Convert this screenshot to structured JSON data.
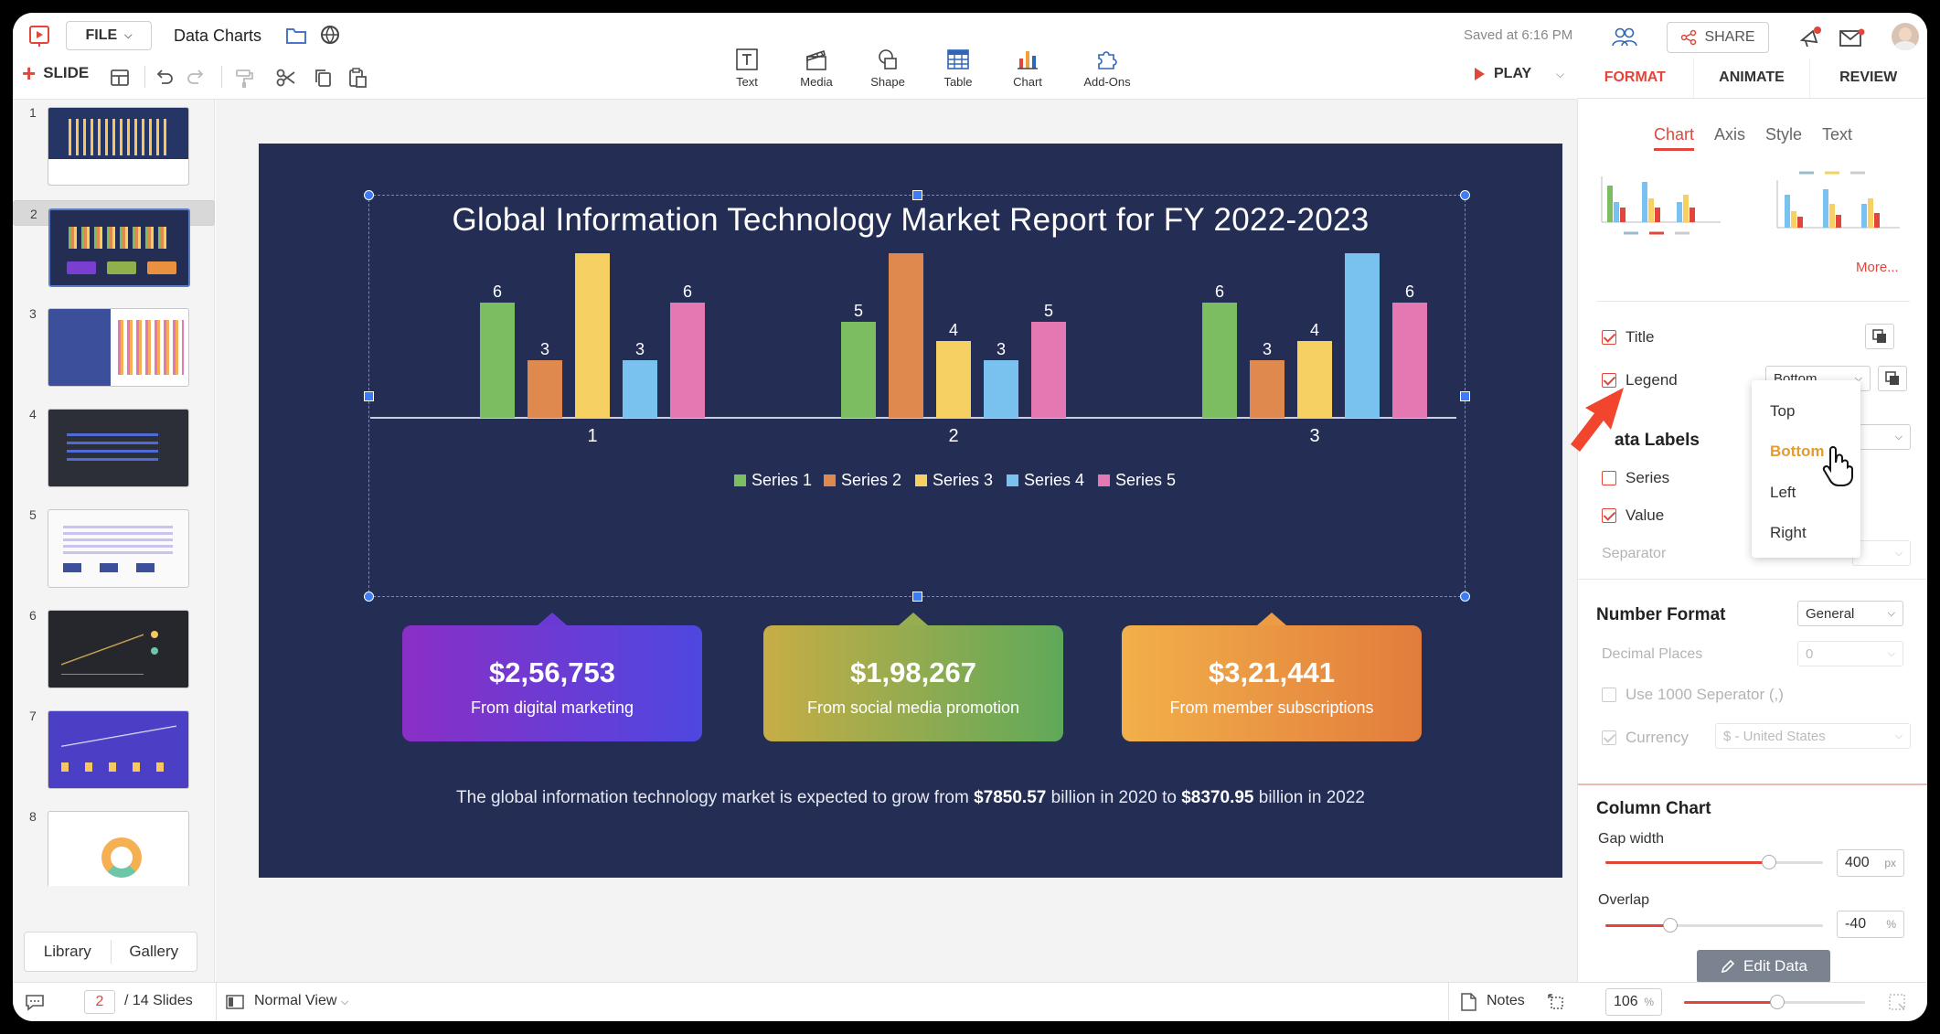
{
  "header": {
    "file_label": "FILE",
    "doc_title": "Data Charts",
    "saved_status": "Saved at 6:16 PM",
    "slide_label": "SLIDE",
    "play_label": "PLAY",
    "share_label": "SHARE",
    "insert_tools": [
      {
        "label": "Text",
        "icon": "text-box-icon"
      },
      {
        "label": "Media",
        "icon": "clapperboard-icon"
      },
      {
        "label": "Shape",
        "icon": "shapes-icon"
      },
      {
        "label": "Table",
        "icon": "table-grid-icon"
      },
      {
        "label": "Chart",
        "icon": "bar-chart-icon"
      },
      {
        "label": "Add-Ons",
        "icon": "puzzle-icon"
      }
    ]
  },
  "right_tabs": [
    "FORMAT",
    "ANIMATE",
    "REVIEW"
  ],
  "sub_tabs": [
    "Chart",
    "Axis",
    "Style",
    "Text"
  ],
  "format_panel": {
    "more_label": "More...",
    "title_label": "Title",
    "legend_label": "Legend",
    "legend_value": "Bottom",
    "legend_options": [
      "Top",
      "Bottom",
      "Left",
      "Right"
    ],
    "data_labels_title": "ata Labels",
    "series_label": "Series",
    "value_label": "Value",
    "separator_label": "Separator",
    "number_format_title": "Number Format",
    "number_format_value": "General",
    "decimal_places_label": "Decimal Places",
    "decimal_places_value": "0",
    "use_separator_label": "Use 1000 Seperator (,)",
    "currency_label": "Currency",
    "currency_value": "$ - United States",
    "column_chart_title": "Column Chart",
    "gap_width_label": "Gap width",
    "gap_width_value": "400",
    "gap_width_unit": "px",
    "gap_width_level": 0.75,
    "overlap_label": "Overlap",
    "overlap_value": "-40",
    "overlap_unit": "%",
    "overlap_level": 0.3,
    "edit_data_label": "Edit Data"
  },
  "left_panel": {
    "slide_numbers": [
      "1",
      "2",
      "3",
      "4",
      "5",
      "6",
      "7",
      "8"
    ],
    "selected_slide": "2",
    "library_label": "Library",
    "gallery_label": "Gallery"
  },
  "slide": {
    "kpis": [
      {
        "value": "$2,56,753",
        "desc": "From digital marketing"
      },
      {
        "value": "$1,98,267",
        "desc": "From social media promotion"
      },
      {
        "value": "$3,21,441",
        "desc": "From member subscriptions"
      }
    ],
    "footer_pre": "The global information technology market is expected to grow from ",
    "footer_b1": "$7850.57",
    "footer_mid": " billion in 2020 to ",
    "footer_b2": "$8370.95",
    "footer_post": " billion in 2022"
  },
  "chart_data": {
    "type": "bar",
    "title": "Global Information Technology Market Report for FY 2022-2023",
    "categories": [
      "1",
      "2",
      "3"
    ],
    "series": [
      {
        "name": "Series 1",
        "color": "#7dbd62",
        "values": [
          6,
          5,
          6
        ]
      },
      {
        "name": "Series 2",
        "color": "#e0894f",
        "values": [
          3,
          9,
          3
        ]
      },
      {
        "name": "Series 3",
        "color": "#f6d063",
        "values": [
          9,
          4,
          4
        ]
      },
      {
        "name": "Series 4",
        "color": "#79c1ee",
        "values": [
          3,
          3,
          9
        ]
      },
      {
        "name": "Series 5",
        "color": "#e378b2",
        "values": [
          6,
          5,
          6
        ]
      }
    ],
    "ylim": [
      0,
      10
    ],
    "legend": "bottom",
    "grid": false,
    "data_labels": true
  },
  "bottom_bar": {
    "current_page": "2",
    "total_label": "/ 14 Slides",
    "view_label": "Normal View",
    "notes_label": "Notes",
    "zoom_value": "106",
    "zoom_unit": "%"
  },
  "colors": {
    "accent": "#e0473a",
    "slide_bg": "#242d53",
    "highlight": "#e69b2d"
  }
}
